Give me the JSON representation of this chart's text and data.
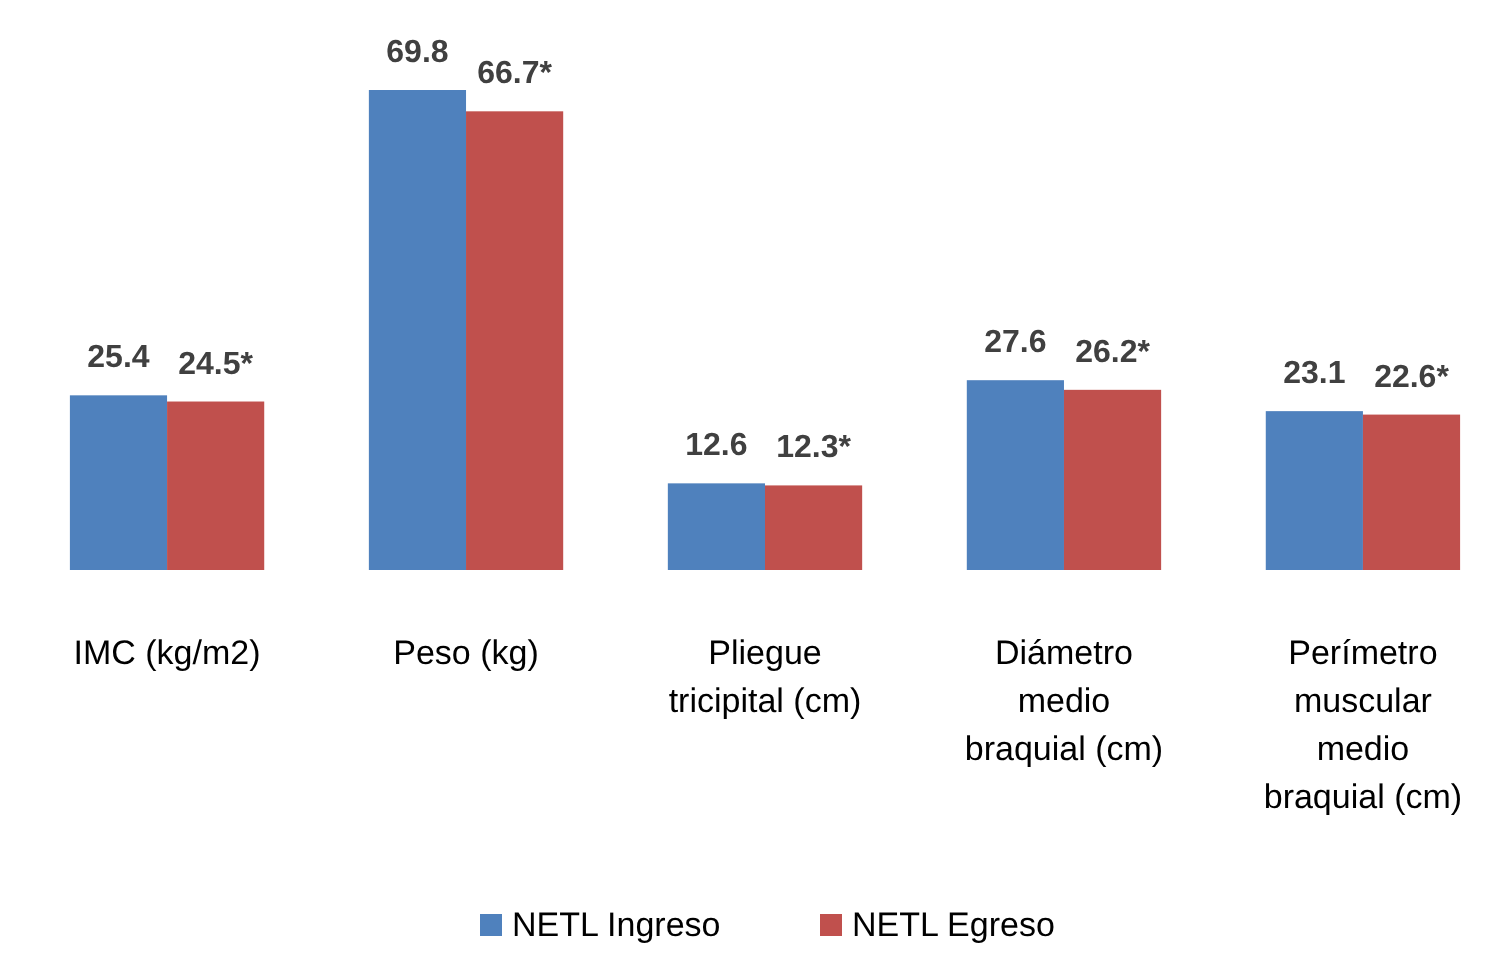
{
  "chart_data": {
    "type": "bar",
    "categories": [
      "IMC (kg/m2)",
      "Peso (kg)",
      "Pliegue tricipital (cm)",
      "Diámetro medio braquial (cm)",
      "Perímetro muscular medio braquial (cm)"
    ],
    "series": [
      {
        "name": "NETL Ingreso",
        "color": "#4f81bd",
        "values": [
          25.4,
          69.8,
          12.6,
          27.6,
          23.1
        ],
        "value_labels": [
          "25.4",
          "69.8",
          "12.6",
          "27.6",
          "23.1"
        ]
      },
      {
        "name": "NETL Egreso",
        "color": "#c0504d",
        "values": [
          24.5,
          66.7,
          12.3,
          26.2,
          22.6
        ],
        "value_labels": [
          "24.5*",
          "66.7*",
          "12.3*",
          "26.2*",
          "22.6*"
        ]
      }
    ],
    "legend": "bottom"
  }
}
